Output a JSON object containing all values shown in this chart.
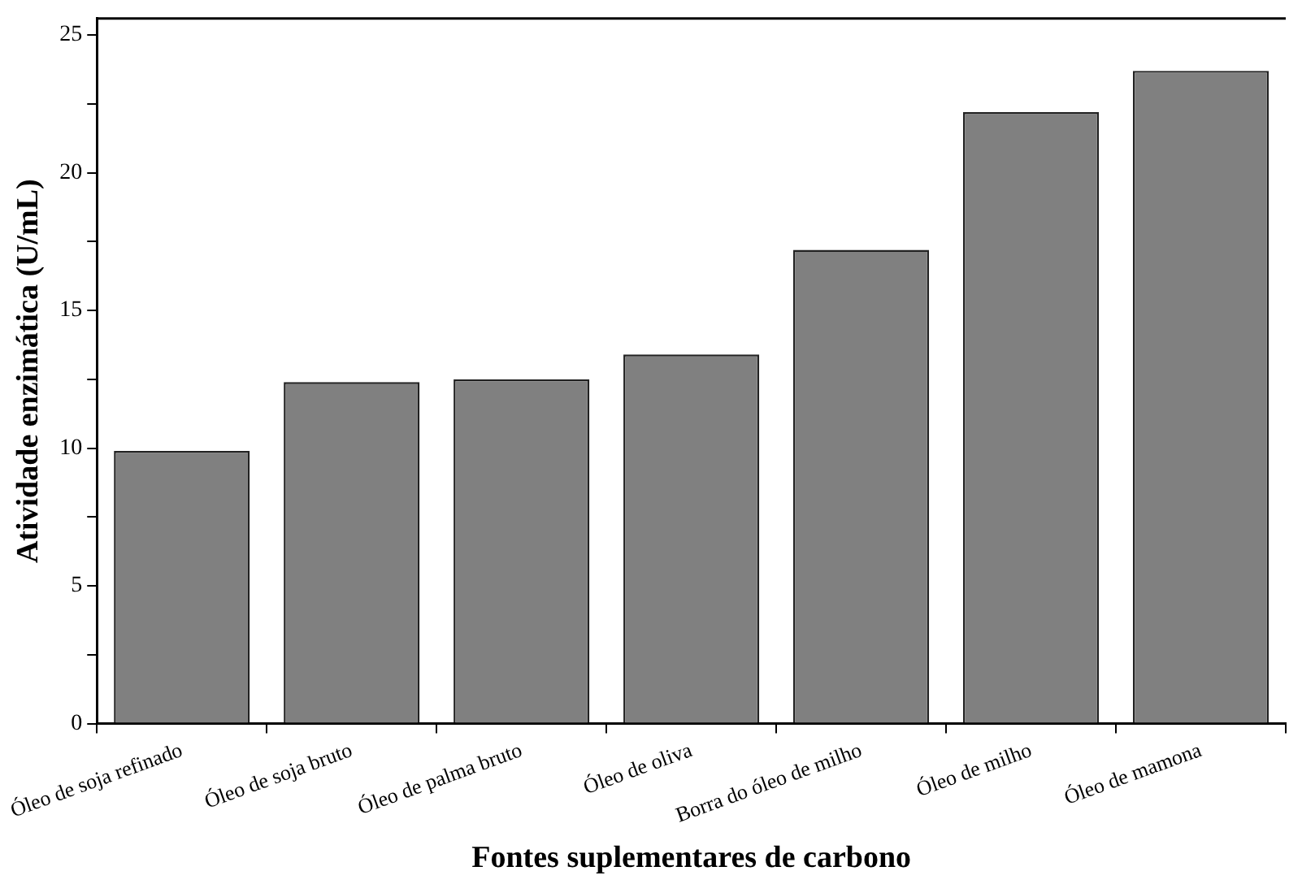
{
  "chart_data": {
    "type": "bar",
    "xlabel": "Fontes suplementares de carbono",
    "ylabel": "Atividade enzimática (U/mL)",
    "categories": [
      "Óleo de soja refinado",
      "Óleo de soja bruto",
      "Óleo de palma bruto",
      "Óleo de oliva",
      "Borra do óleo de milho",
      "Óleo de milho",
      "Óleo de mamona"
    ],
    "values": [
      9.9,
      12.4,
      12.5,
      13.4,
      17.2,
      22.2,
      23.7
    ],
    "color": "#808080",
    "ylim": [
      0,
      25.6
    ],
    "yticks": [
      0,
      {
        "value": 2.5,
        "label": null
      },
      5,
      {
        "value": 7.5,
        "label": null
      },
      10,
      {
        "value": 12.5,
        "label": null
      },
      15,
      {
        "value": 17.5,
        "label": null
      },
      20,
      {
        "value": 22.5,
        "label": null
      },
      25
    ],
    "grid": false,
    "legend": false
  }
}
